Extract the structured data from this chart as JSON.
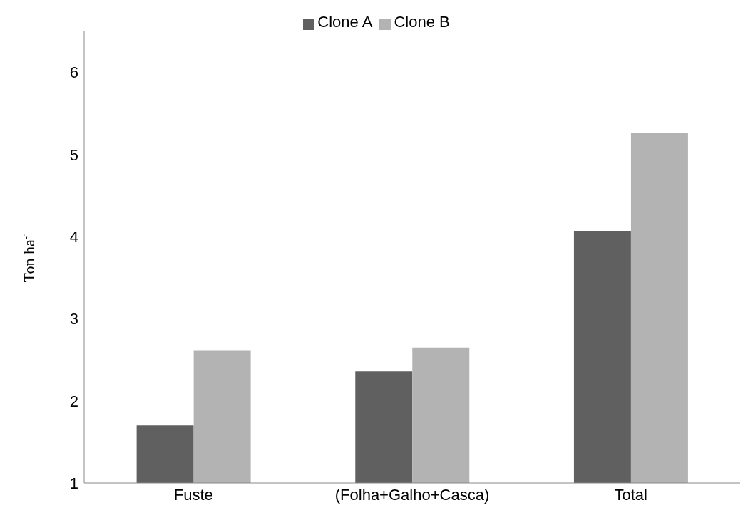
{
  "chart_data": {
    "type": "bar",
    "categories": [
      "Fuste",
      "(Folha+Galho+Casca)",
      "Total"
    ],
    "series": [
      {
        "name": "Clone A",
        "color": "#606060",
        "values": [
          1.7,
          2.36,
          4.07
        ]
      },
      {
        "name": "Clone B",
        "color": "#b3b3b3",
        "values": [
          2.61,
          2.65,
          5.26
        ]
      }
    ],
    "ylabel": "Ton ha$^{-1}$",
    "ylim": [
      1,
      6.5
    ],
    "yticks": [
      1,
      2,
      3,
      4,
      5,
      6
    ],
    "grid": false,
    "legend": "top"
  }
}
